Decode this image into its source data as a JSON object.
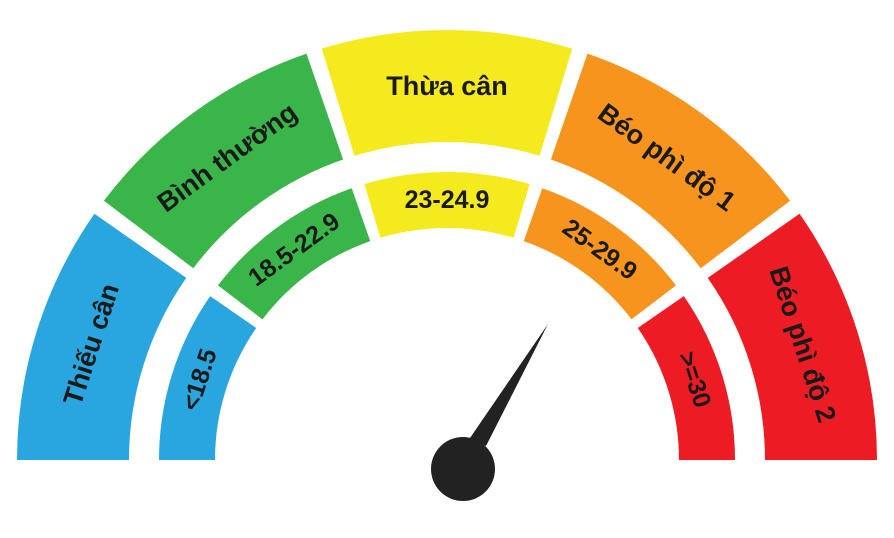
{
  "categories": [
    {
      "name": "Thiếu cân",
      "range": "<18.5",
      "color": "#29a6e0"
    },
    {
      "name": "Bình thường",
      "range": "18.5-22.9",
      "color": "#3ab54a"
    },
    {
      "name": "Thừa cân",
      "range": "23-24.9",
      "color": "#f5ea1d"
    },
    {
      "name": "Béo phì độ 1",
      "range": "25-29.9",
      "color": "#f7941d"
    },
    {
      "name": "Béo phì độ 2",
      "range": ">=30",
      "color": "#ed1c24"
    }
  ],
  "needle": {
    "color": "#222222"
  }
}
